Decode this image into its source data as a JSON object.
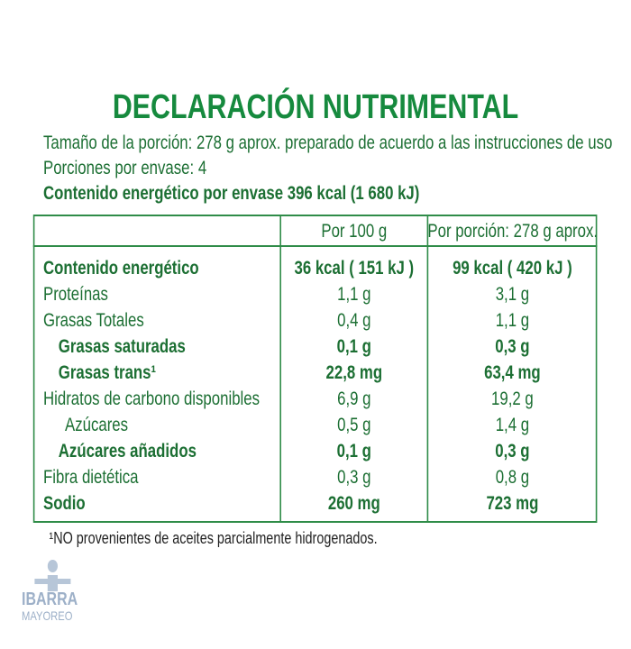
{
  "header": {
    "title": "DECLARACIÓN NUTRIMENTAL",
    "lines": [
      "Tamaño de la porción: 278 g aprox. preparado de acuerdo a las instrucciones de uso",
      "Porciones por envase: 4"
    ],
    "energy_line": "Contenido energético por envase 396 kcal (1 680 kJ)"
  },
  "table": {
    "columns": [
      "Por 100 g",
      "Por porción: 278 g aprox."
    ],
    "rows": [
      {
        "label": "Contenido energético",
        "per_100g": "36 kcal ( 151 kJ )",
        "per_portion": "99 kcal ( 420 kJ )",
        "bold": true,
        "indent": 0
      },
      {
        "label": "Proteínas",
        "per_100g": "1,1 g",
        "per_portion": "3,1 g",
        "bold": false,
        "indent": 0
      },
      {
        "label": "Grasas Totales",
        "per_100g": "0,4 g",
        "per_portion": "1,1 g",
        "bold": false,
        "indent": 0
      },
      {
        "label": "Grasas saturadas",
        "per_100g": "0,1 g",
        "per_portion": "0,3 g",
        "bold": true,
        "indent": 1
      },
      {
        "label": "Grasas trans¹",
        "per_100g": "22,8 mg",
        "per_portion": "63,4 mg",
        "bold": true,
        "indent": 1
      },
      {
        "label": "Hidratos de carbono disponibles",
        "per_100g": "6,9 g",
        "per_portion": "19,2 g",
        "bold": false,
        "indent": 0
      },
      {
        "label": "Azúcares",
        "per_100g": "0,5 g",
        "per_portion": "1,4 g",
        "bold": false,
        "indent": 2
      },
      {
        "label": "Azúcares añadidos",
        "per_100g": "0,1 g",
        "per_portion": "0,3 g",
        "bold": true,
        "indent": 1
      },
      {
        "label": "Fibra dietética",
        "per_100g": "0,3 g",
        "per_portion": "0,8 g",
        "bold": false,
        "indent": 0
      },
      {
        "label": "Sodio",
        "per_100g": "260 mg",
        "per_portion": "723 mg",
        "bold": true,
        "indent": 0
      }
    ]
  },
  "footnote": "¹NO provenientes de aceites parcialmente hidrogenados.",
  "logo": {
    "name": "IBARRA",
    "subtitle": "MAYOREO"
  }
}
